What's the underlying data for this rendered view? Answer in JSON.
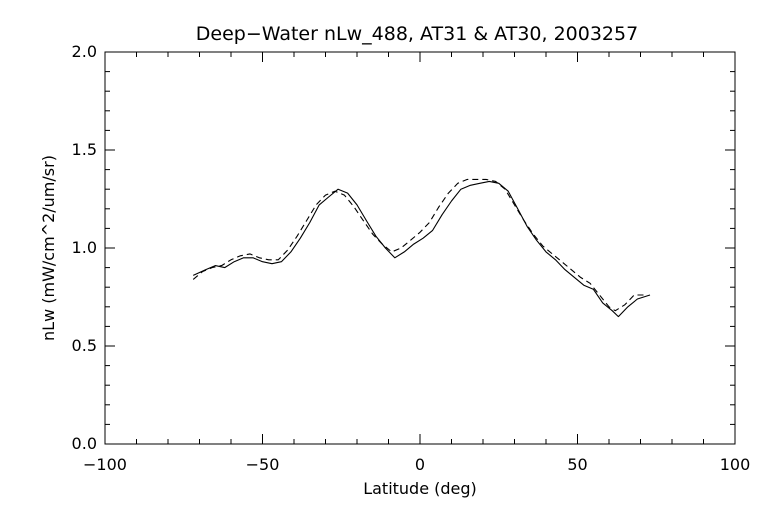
{
  "chart_data": {
    "type": "line",
    "title": "Deep−Water nLw_488, AT31 & AT30, 2003257",
    "xlabel": "Latitude (deg)",
    "ylabel": "nLw (mW/cm^2/um/sr)",
    "xlim": [
      -100,
      100
    ],
    "ylim": [
      0.0,
      2.0
    ],
    "x_ticks": [
      -100,
      -50,
      0,
      50,
      100
    ],
    "x_tick_labels": [
      "−100",
      "−50",
      "0",
      "50",
      "100"
    ],
    "y_ticks": [
      0.0,
      0.5,
      1.0,
      1.5,
      2.0
    ],
    "y_tick_labels": [
      "0.0",
      "0.5",
      "1.0",
      "1.5",
      "2.0"
    ],
    "grid": false,
    "series": [
      {
        "style": "solid",
        "x": [
          -72,
          -68,
          -65,
          -62,
          -59,
          -56,
          -53,
          -50,
          -47,
          -44,
          -41,
          -38,
          -35,
          -32,
          -29,
          -26,
          -23,
          -20,
          -17,
          -14,
          -11,
          -8,
          -5,
          -2,
          1,
          4,
          7,
          10,
          13,
          16,
          19,
          22,
          25,
          28,
          31,
          34,
          37,
          40,
          43,
          46,
          49,
          52,
          55,
          58,
          61,
          63,
          66,
          69,
          73
        ],
        "y": [
          0.86,
          0.89,
          0.91,
          0.9,
          0.93,
          0.95,
          0.95,
          0.93,
          0.92,
          0.93,
          0.98,
          1.05,
          1.13,
          1.22,
          1.26,
          1.3,
          1.28,
          1.22,
          1.14,
          1.06,
          1.0,
          0.95,
          0.98,
          1.02,
          1.05,
          1.09,
          1.17,
          1.24,
          1.3,
          1.32,
          1.33,
          1.34,
          1.33,
          1.29,
          1.2,
          1.11,
          1.04,
          0.98,
          0.94,
          0.89,
          0.85,
          0.81,
          0.79,
          0.72,
          0.68,
          0.65,
          0.7,
          0.74,
          0.76
        ]
      },
      {
        "style": "dashed",
        "x": [
          -72,
          -69,
          -66,
          -63,
          -60,
          -57,
          -54,
          -51,
          -48,
          -45,
          -42,
          -39,
          -36,
          -33,
          -30,
          -27,
          -24,
          -21,
          -18,
          -15,
          -12,
          -9,
          -6,
          -3,
          0,
          3,
          6,
          9,
          12,
          15,
          18,
          21,
          24,
          27,
          30,
          33,
          36,
          39,
          42,
          45,
          48,
          51,
          54,
          57,
          60,
          62,
          65,
          68,
          72
        ],
        "y": [
          0.84,
          0.88,
          0.9,
          0.91,
          0.94,
          0.96,
          0.97,
          0.95,
          0.94,
          0.94,
          0.99,
          1.06,
          1.14,
          1.22,
          1.27,
          1.29,
          1.27,
          1.21,
          1.14,
          1.07,
          1.02,
          0.98,
          1.0,
          1.04,
          1.08,
          1.13,
          1.21,
          1.28,
          1.33,
          1.35,
          1.35,
          1.35,
          1.34,
          1.3,
          1.22,
          1.14,
          1.07,
          1.01,
          0.97,
          0.93,
          0.89,
          0.85,
          0.82,
          0.76,
          0.7,
          0.68,
          0.71,
          0.76,
          0.76
        ]
      }
    ]
  }
}
